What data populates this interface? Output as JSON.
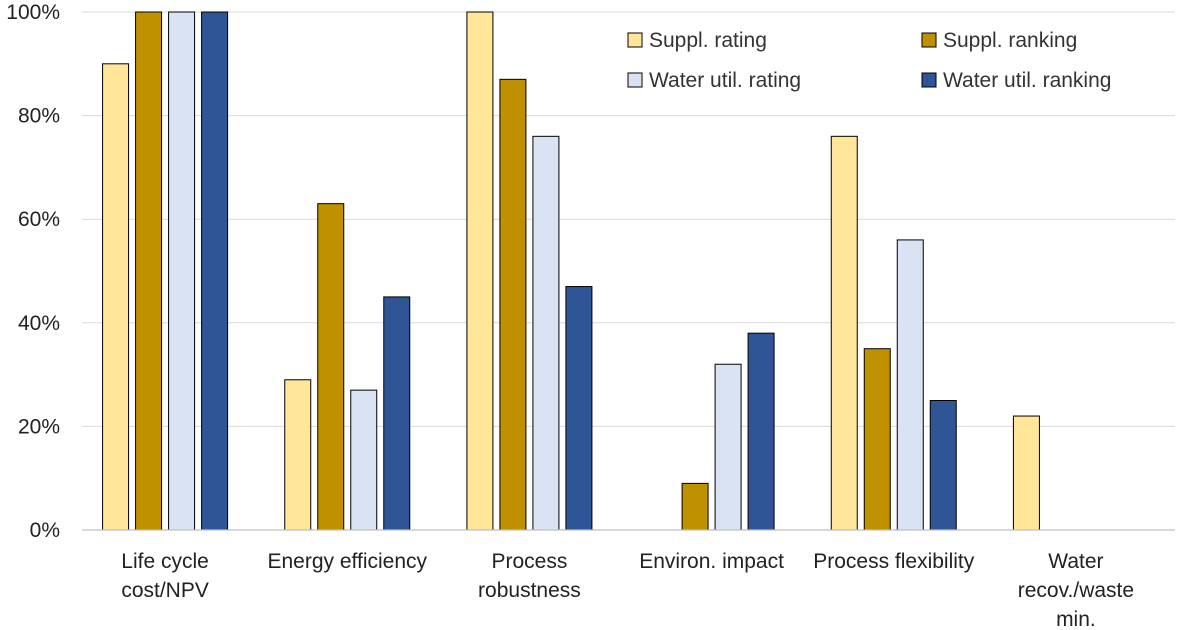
{
  "chart_data": {
    "type": "bar",
    "categories": [
      [
        "Life cycle",
        "cost/NPV"
      ],
      [
        "Energy efficiency"
      ],
      [
        "Process",
        "robustness"
      ],
      [
        "Environ. impact"
      ],
      [
        "Process flexibility"
      ],
      [
        "Water",
        "recov./waste",
        "min."
      ]
    ],
    "series": [
      {
        "name": "Suppl. rating",
        "color": "#FFE699",
        "values": [
          90,
          29,
          100,
          0,
          76,
          22
        ]
      },
      {
        "name": "Suppl. ranking",
        "color": "#BF9000",
        "values": [
          100,
          63,
          87,
          9,
          35,
          0
        ]
      },
      {
        "name": "Water util. rating",
        "color": "#DAE3F3",
        "values": [
          100,
          27,
          76,
          32,
          56,
          0
        ]
      },
      {
        "name": "Water util. ranking",
        "color": "#2F5597",
        "values": [
          100,
          45,
          47,
          38,
          25,
          0
        ]
      }
    ],
    "yticks": [
      "0%",
      "20%",
      "40%",
      "60%",
      "80%",
      "100%"
    ],
    "ylim": [
      0,
      100
    ],
    "title": "",
    "xlabel": "",
    "ylabel": "",
    "grid": true,
    "legend_position": "top-right"
  }
}
